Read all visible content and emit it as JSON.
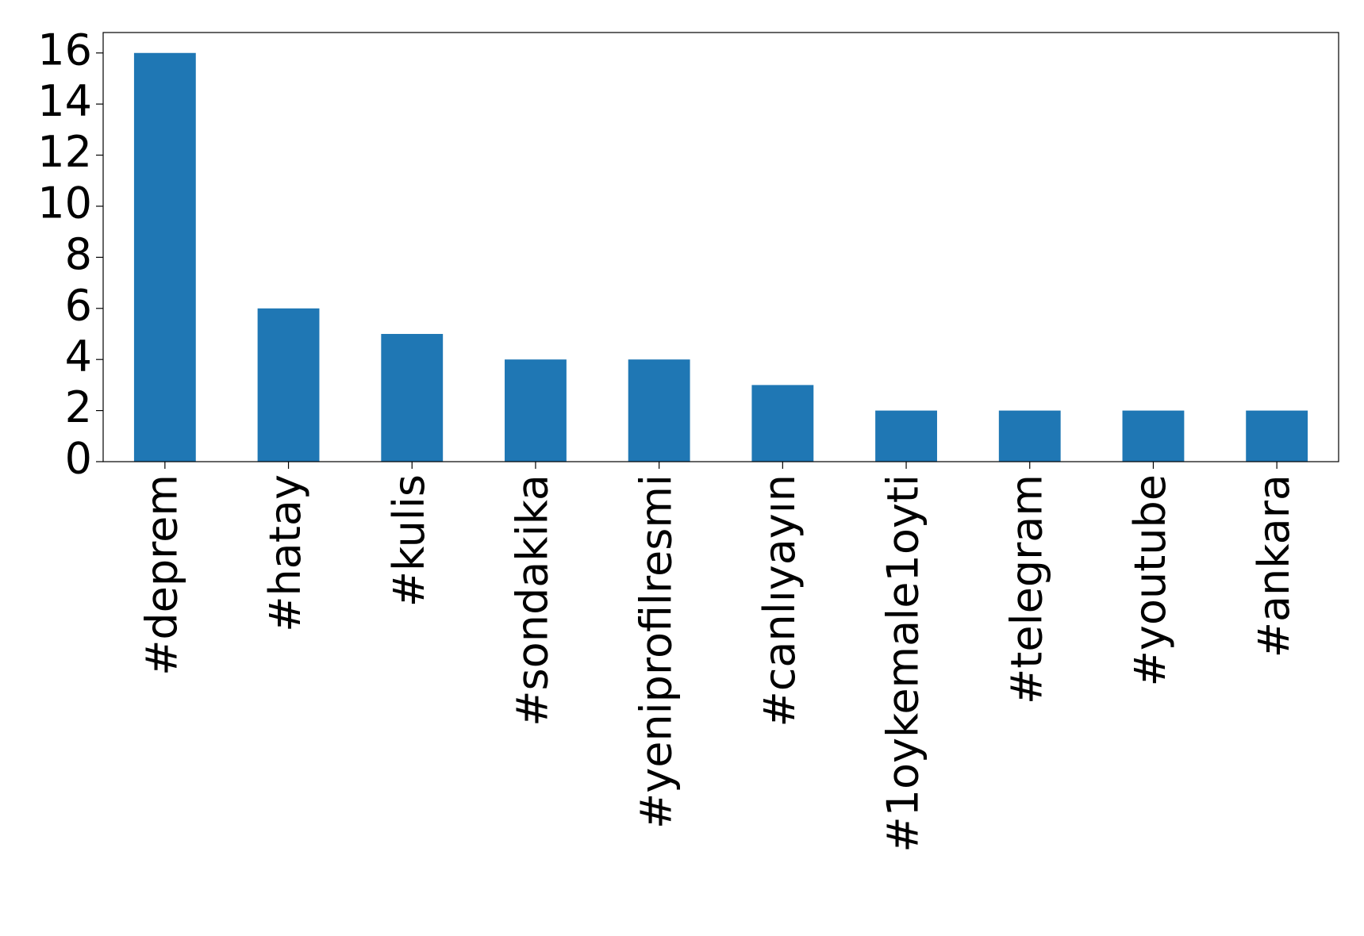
{
  "chart_data": {
    "type": "bar",
    "categories": [
      "#deprem",
      "#hatay",
      "#kulis",
      "#sondakika",
      "#yeniprofilresmi",
      "#canlıyayın",
      "#1oykemale1oyti",
      "#telegram",
      "#youtube",
      "#ankara"
    ],
    "values": [
      16,
      6,
      5,
      4,
      4,
      3,
      2,
      2,
      2,
      2
    ],
    "color": "#1f77b4",
    "ylim": [
      0,
      16.8
    ],
    "yticks": [
      0,
      2,
      4,
      6,
      8,
      10,
      12,
      14,
      16
    ],
    "grid": false
  }
}
